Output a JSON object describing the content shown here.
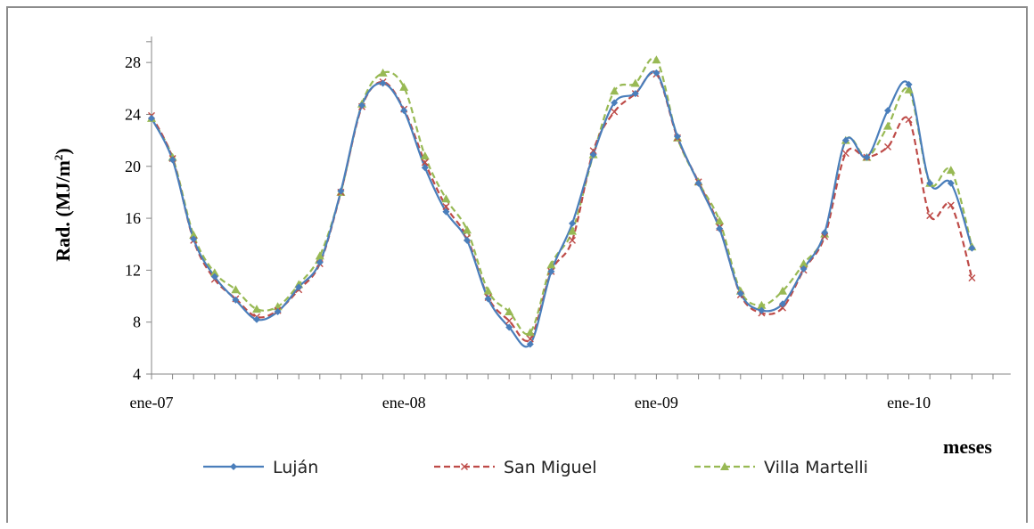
{
  "chart_data": {
    "type": "line",
    "title": "",
    "ylabel": "Rad. (MJ/m",
    "ylabel_sup": "2",
    "ylabel_close": ")",
    "xlabel": "meses",
    "ylim": [
      4,
      30
    ],
    "yticks": [
      4,
      8,
      12,
      16,
      20,
      24,
      28
    ],
    "xticks": [
      {
        "label": "ene-07",
        "month": 0
      },
      {
        "label": "ene-08",
        "month": 12
      },
      {
        "label": "ene-09",
        "month": 24
      },
      {
        "label": "ene-10",
        "month": 36
      }
    ],
    "xlim_months": [
      0,
      40.5
    ],
    "grid": false,
    "legend_position": "bottom",
    "series": [
      {
        "name": "Luján",
        "color": "#4a7ebb",
        "marker": "diamond",
        "dash": "solid",
        "values": [
          [
            0,
            23.7
          ],
          [
            1,
            20.5
          ],
          [
            2,
            14.4
          ],
          [
            3,
            11.5
          ],
          [
            4,
            9.7
          ],
          [
            5,
            8.2
          ],
          [
            6,
            8.8
          ],
          [
            7,
            10.7
          ],
          [
            8,
            12.6
          ],
          [
            9,
            18.1
          ],
          [
            10,
            24.7
          ],
          [
            11,
            26.4
          ],
          [
            12,
            24.3
          ],
          [
            13,
            19.9
          ],
          [
            14,
            16.5
          ],
          [
            15,
            14.3
          ],
          [
            16,
            9.8
          ],
          [
            17,
            7.6
          ],
          [
            18,
            6.3
          ],
          [
            19,
            11.9
          ],
          [
            20,
            15.6
          ],
          [
            21,
            20.9
          ],
          [
            22,
            24.9
          ],
          [
            23,
            25.6
          ],
          [
            24,
            27.2
          ],
          [
            25,
            22.3
          ],
          [
            26,
            18.7
          ],
          [
            27,
            15.2
          ],
          [
            28,
            10.2
          ],
          [
            29,
            8.9
          ],
          [
            30,
            9.4
          ],
          [
            31,
            12.1
          ],
          [
            32,
            14.9
          ],
          [
            33,
            22.0
          ],
          [
            34,
            20.7
          ],
          [
            35,
            24.3
          ],
          [
            36,
            26.3
          ],
          [
            37,
            18.7
          ],
          [
            38,
            18.7
          ],
          [
            39,
            13.7
          ]
        ]
      },
      {
        "name": "San Miguel",
        "color": "#be4b48",
        "marker": "x",
        "dash": "dashed",
        "values": [
          [
            0,
            23.9
          ],
          [
            1,
            20.6
          ],
          [
            2,
            14.3
          ],
          [
            3,
            11.3
          ],
          [
            4,
            9.8
          ],
          [
            5,
            8.4
          ],
          [
            6,
            8.9
          ],
          [
            7,
            10.5
          ],
          [
            8,
            12.5
          ],
          [
            9,
            18.0
          ],
          [
            10,
            24.6
          ],
          [
            11,
            26.5
          ],
          [
            12,
            24.4
          ],
          [
            13,
            20.3
          ],
          [
            14,
            16.9
          ],
          [
            15,
            14.5
          ],
          [
            16,
            9.9
          ],
          [
            17,
            8.1
          ],
          [
            18,
            6.7
          ],
          [
            19,
            11.9
          ],
          [
            20,
            14.3
          ],
          [
            21,
            21.2
          ],
          [
            22,
            24.2
          ],
          [
            23,
            25.6
          ],
          [
            24,
            27.1
          ],
          [
            25,
            22.2
          ],
          [
            26,
            18.8
          ],
          [
            27,
            15.3
          ],
          [
            28,
            10.1
          ],
          [
            29,
            8.7
          ],
          [
            30,
            9.1
          ],
          [
            31,
            12.0
          ],
          [
            32,
            14.6
          ],
          [
            33,
            21.0
          ],
          [
            34,
            20.7
          ],
          [
            35,
            21.5
          ],
          [
            36,
            23.6
          ],
          [
            37,
            16.2
          ],
          [
            38,
            17.0
          ],
          [
            39,
            11.4
          ]
        ]
      },
      {
        "name": "Villa Martelli",
        "color": "#98b954",
        "marker": "triangle",
        "dash": "dashed",
        "values": [
          [
            0,
            23.7
          ],
          [
            1,
            20.7
          ],
          [
            2,
            14.7
          ],
          [
            3,
            11.8
          ],
          [
            4,
            10.5
          ],
          [
            5,
            9.0
          ],
          [
            6,
            9.2
          ],
          [
            7,
            10.9
          ],
          [
            8,
            13.1
          ],
          [
            9,
            18.0
          ],
          [
            10,
            24.8
          ],
          [
            11,
            27.2
          ],
          [
            12,
            26.1
          ],
          [
            13,
            20.8
          ],
          [
            14,
            17.5
          ],
          [
            15,
            15.1
          ],
          [
            16,
            10.4
          ],
          [
            17,
            8.8
          ],
          [
            18,
            7.2
          ],
          [
            19,
            12.4
          ],
          [
            20,
            15.0
          ],
          [
            21,
            20.9
          ],
          [
            22,
            25.8
          ],
          [
            23,
            26.4
          ],
          [
            24,
            28.2
          ],
          [
            25,
            22.2
          ],
          [
            26,
            18.8
          ],
          [
            27,
            15.8
          ],
          [
            28,
            10.4
          ],
          [
            29,
            9.3
          ],
          [
            30,
            10.4
          ],
          [
            31,
            12.5
          ],
          [
            32,
            14.8
          ],
          [
            33,
            22.0
          ],
          [
            34,
            20.7
          ],
          [
            35,
            23.1
          ],
          [
            36,
            25.9
          ],
          [
            37,
            18.7
          ],
          [
            38,
            19.7
          ],
          [
            39,
            13.8
          ]
        ]
      }
    ]
  }
}
